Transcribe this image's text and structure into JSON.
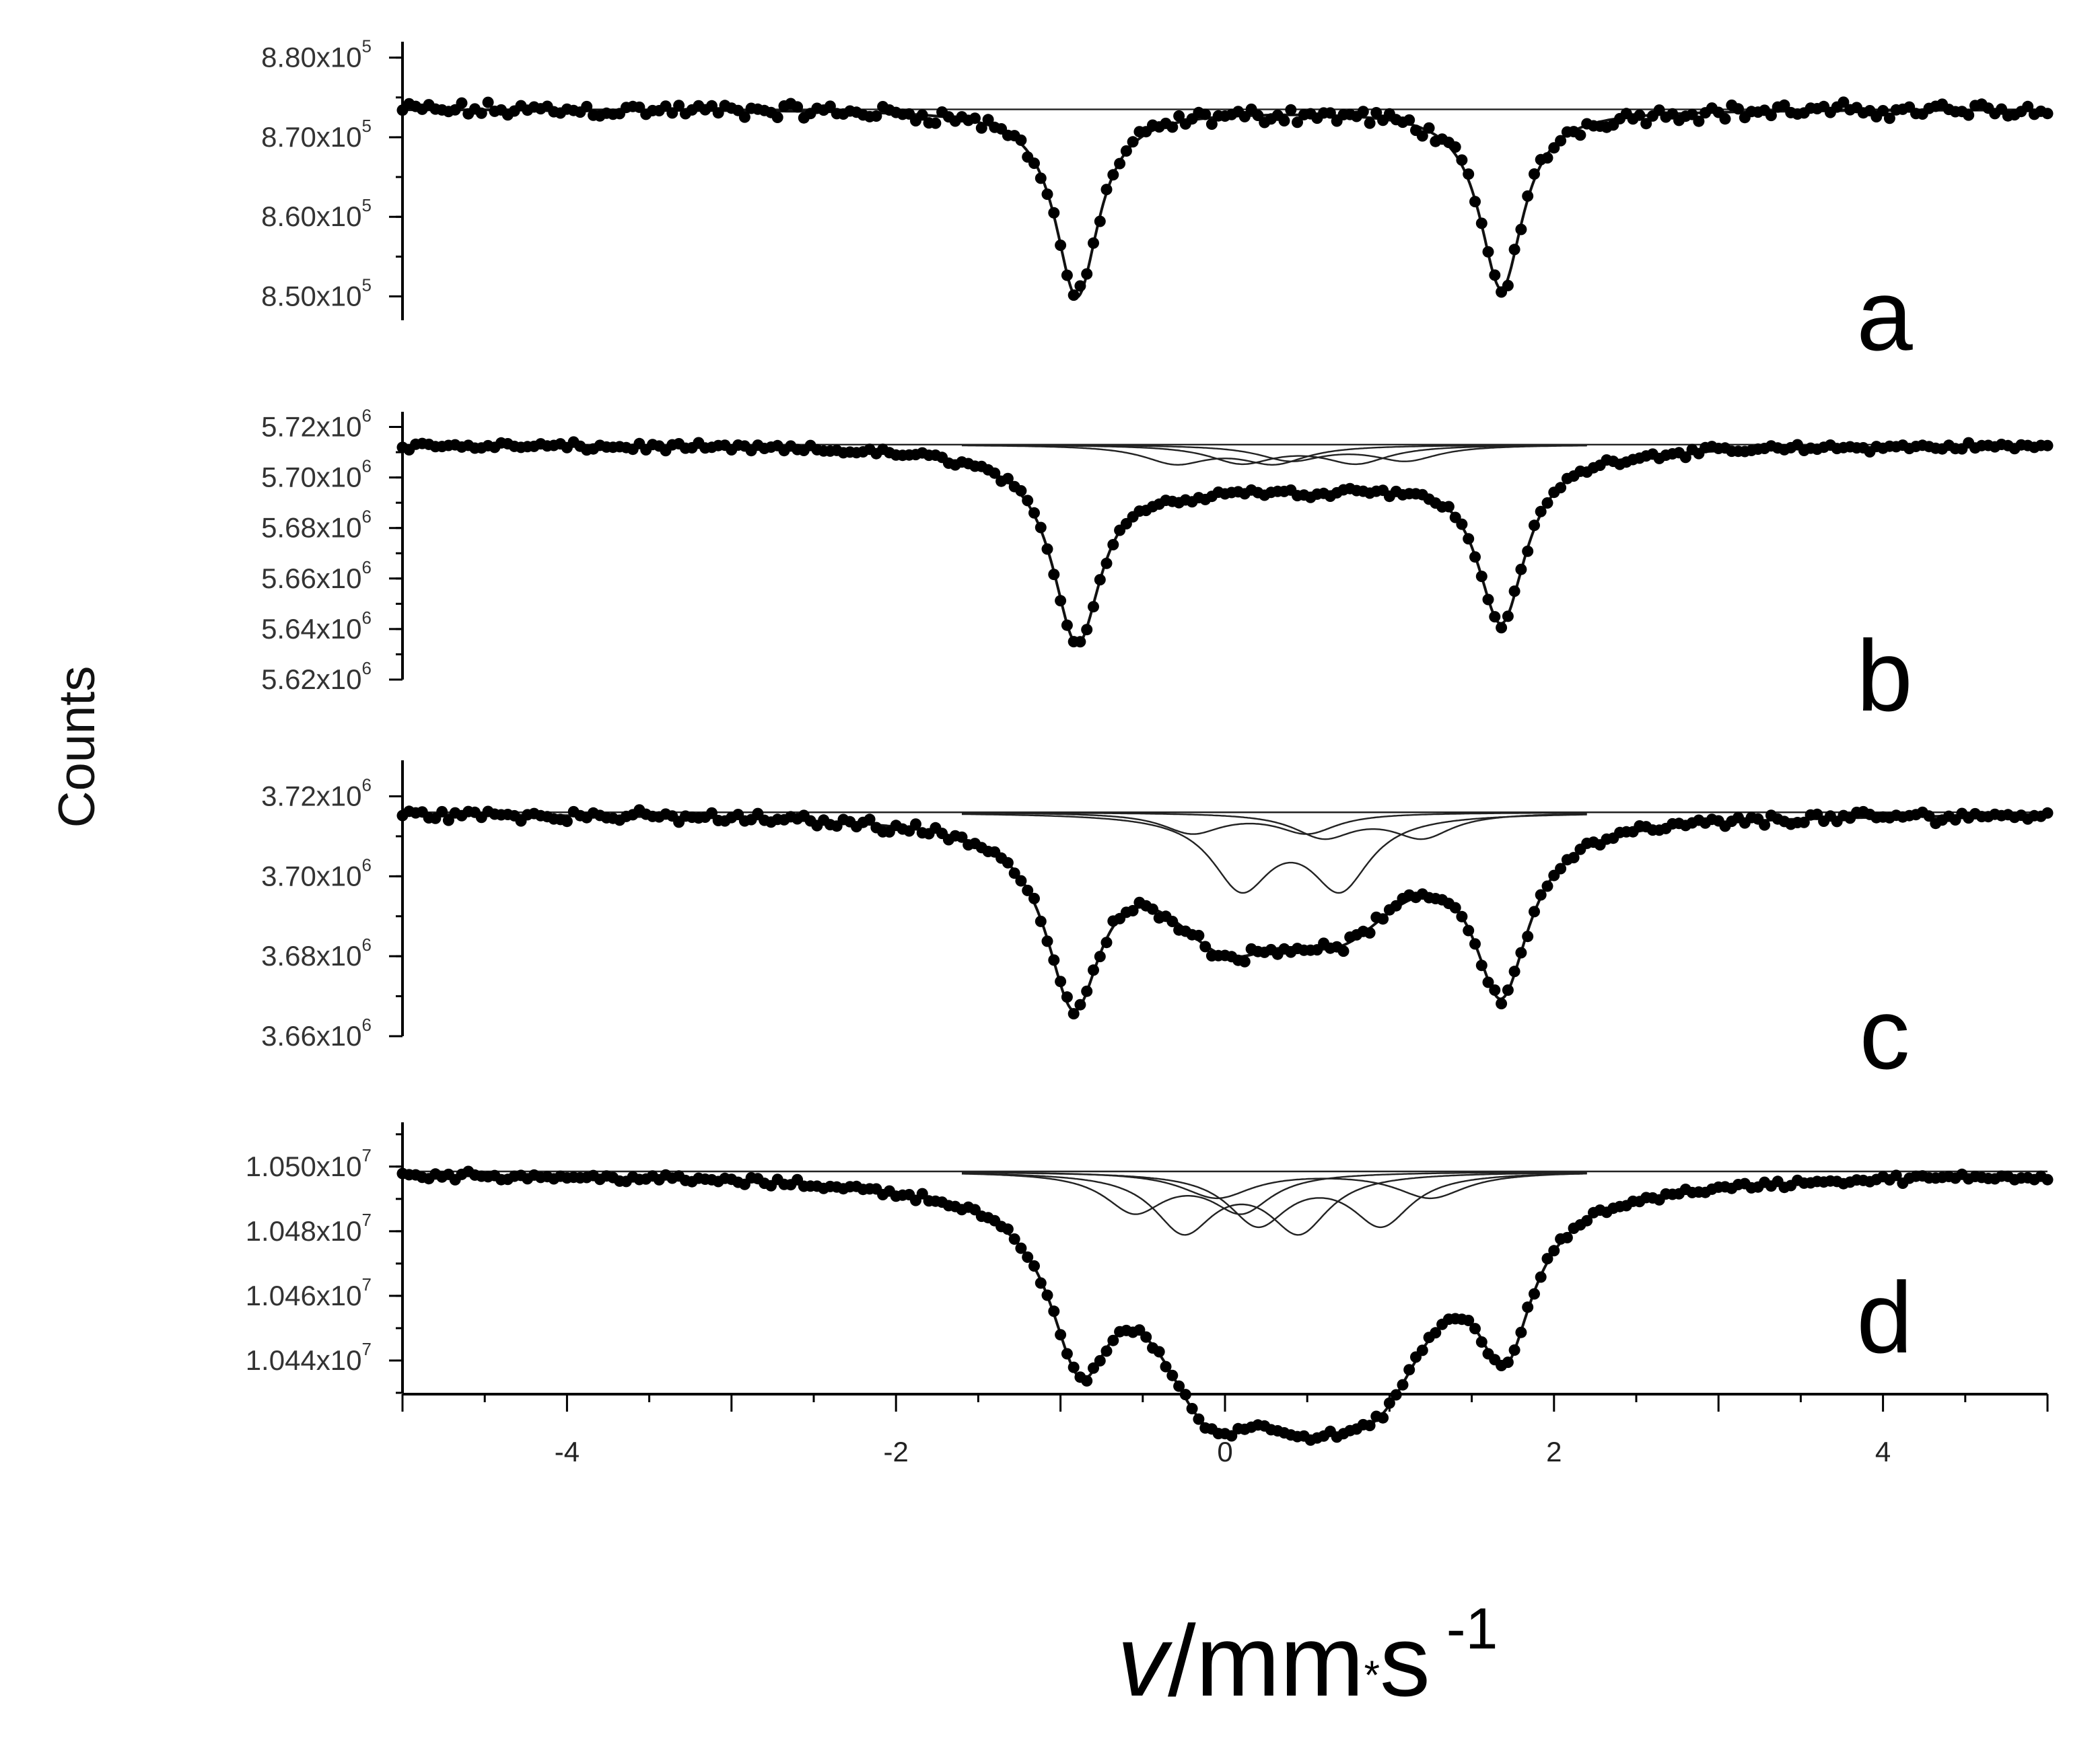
{
  "figure": {
    "ylabel": "Counts",
    "xlabel": {
      "var": "v",
      "unit": "/mm",
      "dot": "*",
      "s": "s",
      "exp": " -1"
    }
  },
  "chart_data": [
    {
      "type": "scatter",
      "panel_label": "a",
      "xlim": [
        -5,
        5
      ],
      "ylim": [
        8.47,
        8.82
      ],
      "ytick_values": [
        8.8,
        8.7,
        8.6,
        8.5
      ],
      "yticks": [
        {
          "mant": "8.80x10",
          "exp": "5"
        },
        {
          "mant": "8.70x10",
          "exp": "5"
        },
        {
          "mant": "8.60x10",
          "exp": "5"
        },
        {
          "mant": "8.50x10",
          "exp": "5"
        }
      ],
      "baseline": 8.735,
      "noise_amplitude": 0.012,
      "fit_components": [
        {
          "center": -0.9,
          "width": 0.16,
          "depth": 0.235
        },
        {
          "center": 1.68,
          "width": 0.16,
          "depth": 0.225
        }
      ],
      "subspectra": []
    },
    {
      "type": "scatter",
      "panel_label": "b",
      "xlim": [
        -5,
        5
      ],
      "ylim": [
        5.62,
        5.726
      ],
      "ytick_values": [
        5.72,
        5.7,
        5.68,
        5.66,
        5.64,
        5.62
      ],
      "yticks": [
        {
          "mant": "5.72x10",
          "exp": "6"
        },
        {
          "mant": "5.70x10",
          "exp": "6"
        },
        {
          "mant": "5.68x10",
          "exp": "6"
        },
        {
          "mant": "5.66x10",
          "exp": "6"
        },
        {
          "mant": "5.64x10",
          "exp": "6"
        },
        {
          "mant": "5.62x10",
          "exp": "6"
        }
      ],
      "baseline": 5.713,
      "noise_amplitude": 0.002,
      "fit_components": [
        {
          "center": -0.9,
          "width": 0.18,
          "depth": 0.072
        },
        {
          "center": 1.68,
          "width": 0.18,
          "depth": 0.065
        },
        {
          "center": -0.3,
          "width": 0.5,
          "depth": 0.012
        },
        {
          "center": 0.45,
          "width": 0.5,
          "depth": 0.01
        },
        {
          "center": 1.1,
          "width": 0.5,
          "depth": 0.008
        }
      ],
      "subspectra": [
        {
          "centers": [
            -0.3,
            0.3
          ],
          "width": 0.24,
          "depth": 0.007
        },
        {
          "centers": [
            0.1,
            0.8
          ],
          "width": 0.24,
          "depth": 0.007
        },
        {
          "centers": [
            0.4,
            1.1
          ],
          "width": 0.24,
          "depth": 0.006
        }
      ]
    },
    {
      "type": "scatter",
      "panel_label": "c",
      "xlim": [
        -5,
        5
      ],
      "ylim": [
        3.66,
        3.729
      ],
      "ytick_values": [
        3.72,
        3.7,
        3.68,
        3.66
      ],
      "yticks": [
        {
          "mant": "3.72x10",
          "exp": "6"
        },
        {
          "mant": "3.70x10",
          "exp": "6"
        },
        {
          "mant": "3.68x10",
          "exp": "6"
        },
        {
          "mant": "3.66x10",
          "exp": "6"
        }
      ],
      "baseline": 3.716,
      "noise_amplitude": 0.0018,
      "fit_components": [
        {
          "center": -0.92,
          "width": 0.2,
          "depth": 0.042
        },
        {
          "center": 1.68,
          "width": 0.2,
          "depth": 0.04
        },
        {
          "center": 0.0,
          "width": 0.48,
          "depth": 0.026
        },
        {
          "center": 0.7,
          "width": 0.48,
          "depth": 0.023
        }
      ],
      "subspectra": [
        {
          "centers": [
            -0.2,
            0.5
          ],
          "width": 0.22,
          "depth": 0.005
        },
        {
          "centers": [
            0.1,
            0.7
          ],
          "width": 0.22,
          "depth": 0.018
        },
        {
          "centers": [
            0.6,
            1.2
          ],
          "width": 0.22,
          "depth": 0.006
        }
      ]
    },
    {
      "type": "scatter",
      "panel_label": "d",
      "xlim": [
        -5,
        5
      ],
      "ylim": [
        10.43,
        10.5137
      ],
      "ytick_values": [
        10.5,
        10.48,
        10.46,
        10.44
      ],
      "yticks": [
        {
          "mant": "1.050x10",
          "exp": "7"
        },
        {
          "mant": "1.048x10",
          "exp": "7"
        },
        {
          "mant": "1.046x10",
          "exp": "7"
        },
        {
          "mant": "1.044x10",
          "exp": "7"
        }
      ],
      "baseline": 10.4985,
      "noise_amplitude": 0.0015,
      "fit_components": [
        {
          "center": -0.88,
          "width": 0.22,
          "depth": 0.045
        },
        {
          "center": 1.7,
          "width": 0.2,
          "depth": 0.042
        },
        {
          "center": -0.1,
          "width": 0.42,
          "depth": 0.052
        },
        {
          "center": 0.5,
          "width": 0.5,
          "depth": 0.045
        },
        {
          "center": 0.95,
          "width": 0.4,
          "depth": 0.04
        }
      ],
      "subspectra": [
        {
          "centers": [
            -0.55,
            0.1
          ],
          "width": 0.22,
          "depth": 0.012
        },
        {
          "centers": [
            -0.25,
            0.45
          ],
          "width": 0.22,
          "depth": 0.018
        },
        {
          "centers": [
            0.2,
            0.95
          ],
          "width": 0.22,
          "depth": 0.016
        },
        {
          "centers": [
            -0.05,
            1.25
          ],
          "width": 0.26,
          "depth": 0.008
        }
      ]
    }
  ],
  "xaxis": {
    "range": [
      -5,
      5
    ],
    "major_ticks": [
      -4,
      -2,
      0,
      2,
      4
    ],
    "minor_step": 1
  }
}
